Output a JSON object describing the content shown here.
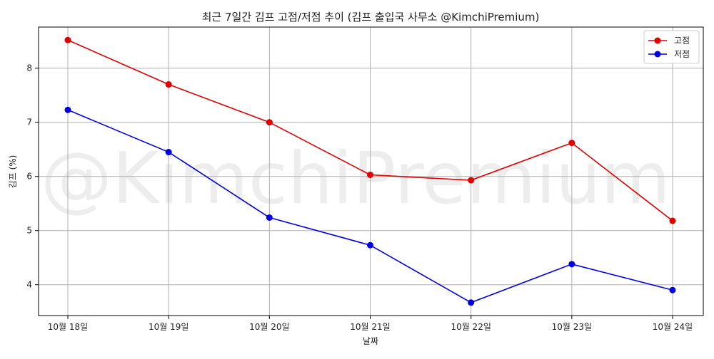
{
  "chart_data": {
    "type": "line",
    "title": "최근 7일간 김프 고점/저점 추이 (김프 출입국 사무소 @KimchiPremium)",
    "xlabel": "날짜",
    "ylabel": "김프 (%)",
    "categories": [
      "10월 18일",
      "10월 19일",
      "10월 20일",
      "10월 21일",
      "10월 22일",
      "10월 23일",
      "10월 24일"
    ],
    "series": [
      {
        "name": "고점",
        "color": "#e00000",
        "values": [
          8.52,
          7.7,
          7.0,
          6.03,
          5.93,
          6.62,
          5.18
        ]
      },
      {
        "name": "저점",
        "color": "#0000e0",
        "values": [
          7.23,
          6.45,
          5.24,
          4.73,
          3.67,
          4.38,
          3.9
        ]
      }
    ],
    "yticks": [
      4,
      5,
      6,
      7,
      8
    ],
    "ylim": [
      3.43,
      8.76
    ],
    "grid": true,
    "legend_position": "top-right",
    "watermark": "@KimchiPremium"
  }
}
